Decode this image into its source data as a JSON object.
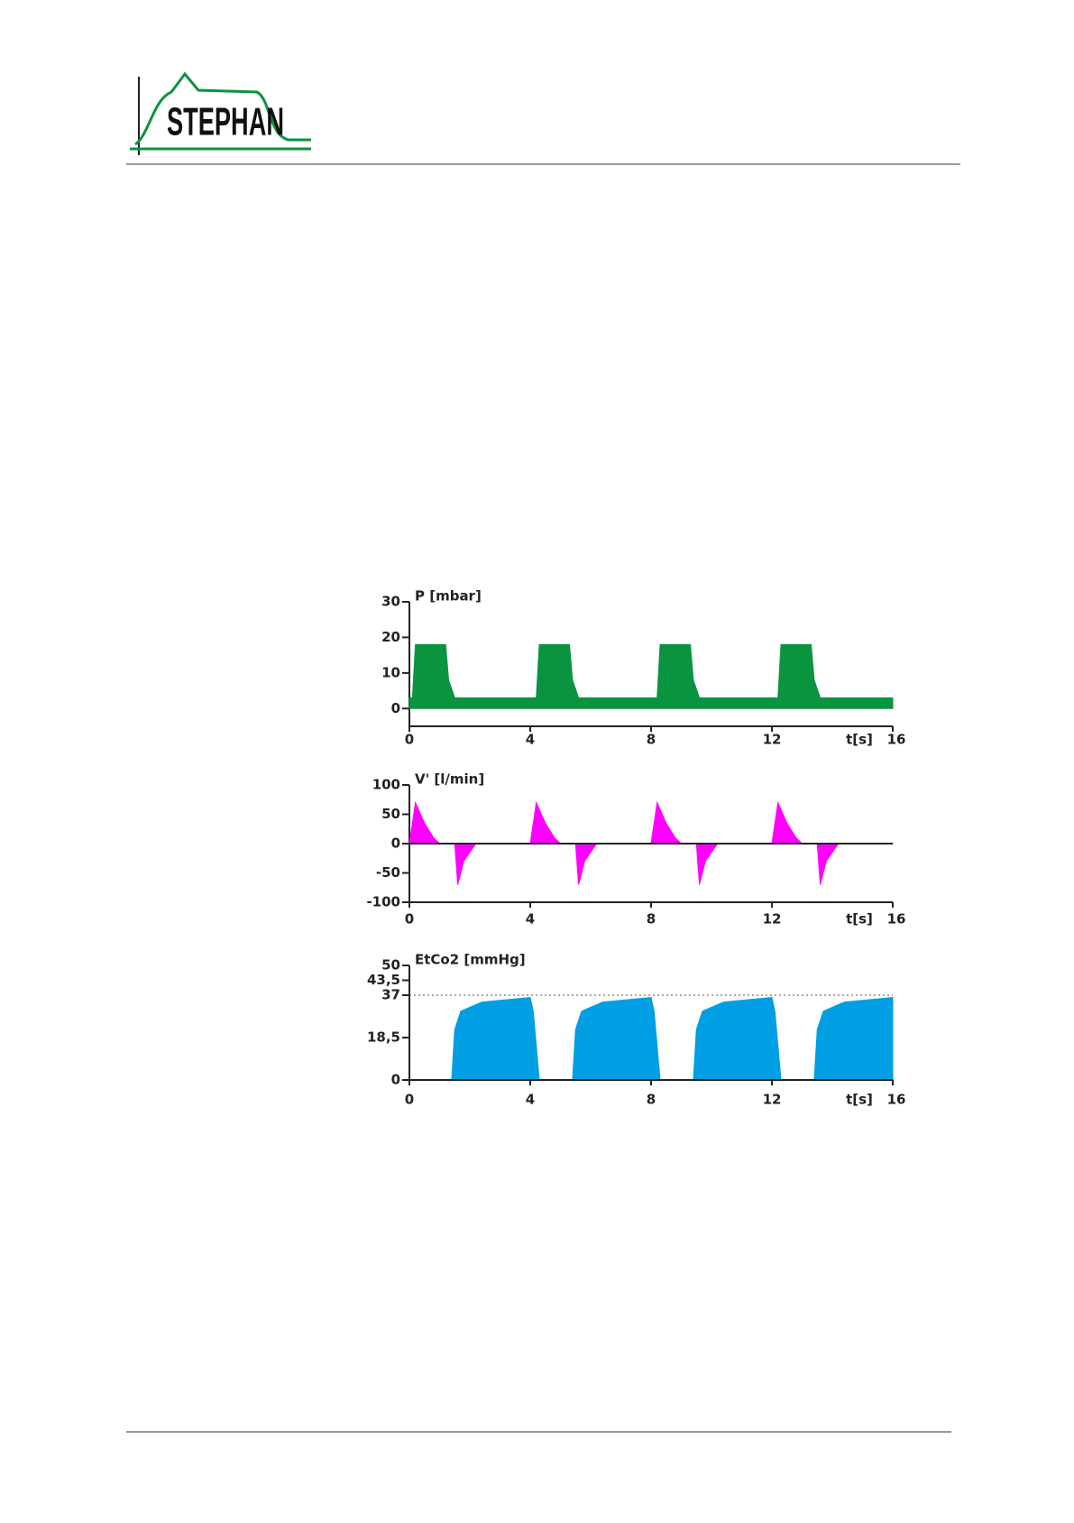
{
  "header": {
    "logo": "STEPHAN"
  },
  "chart_data": [
    {
      "type": "area",
      "title": "P  [mbar]",
      "xlabel": "t[s]",
      "color": "#0a9440",
      "x": [
        0,
        0.1,
        0.2,
        1.2,
        1.3,
        1.5,
        4.2,
        4.3,
        5.3,
        5.4,
        5.6,
        8.2,
        8.3,
        9.3,
        9.4,
        9.6,
        12.2,
        12.3,
        13.3,
        13.4,
        13.6,
        16
      ],
      "values": [
        3,
        3,
        18,
        18,
        8,
        3,
        3,
        18,
        18,
        8,
        3,
        3,
        18,
        18,
        8,
        3,
        3,
        18,
        18,
        8,
        3,
        3
      ],
      "xlim": [
        0,
        16
      ],
      "xticks": [
        0,
        4,
        8,
        12,
        16
      ],
      "ylim": [
        -5,
        30
      ],
      "yticks": [
        0,
        10,
        20,
        30
      ]
    },
    {
      "type": "area",
      "title": "V' [l/min]",
      "xlabel": "t[s]",
      "color": "#ff00ff",
      "x": [
        0,
        0.2,
        0.5,
        0.8,
        1.0,
        1.5,
        1.6,
        1.8,
        2.2,
        4,
        4.2,
        4.5,
        4.8,
        5.0,
        5.5,
        5.6,
        5.8,
        6.2,
        8,
        8.2,
        8.5,
        8.8,
        9.0,
        9.5,
        9.6,
        9.8,
        10.2,
        12,
        12.2,
        12.5,
        12.8,
        13.0,
        13.5,
        13.6,
        13.8,
        14.2,
        16
      ],
      "values": [
        0,
        70,
        35,
        10,
        0,
        0,
        -70,
        -30,
        0,
        0,
        70,
        35,
        10,
        0,
        0,
        -70,
        -30,
        0,
        0,
        70,
        35,
        10,
        0,
        0,
        -70,
        -30,
        0,
        0,
        70,
        35,
        10,
        0,
        0,
        -70,
        -30,
        0,
        0
      ],
      "xlim": [
        0,
        16
      ],
      "xticks": [
        0,
        4,
        8,
        12,
        16
      ],
      "ylim": [
        -100,
        100
      ],
      "yticks": [
        -100,
        -50,
        0,
        50,
        100
      ],
      "zero_line": true
    },
    {
      "type": "area",
      "title": "EtCo2 [mmHg]",
      "xlabel": "t[s]",
      "color": "#009fe3",
      "x": [
        0,
        1.4,
        1.5,
        1.7,
        2.4,
        4.0,
        4.1,
        4.3,
        5.4,
        5.5,
        5.7,
        6.4,
        8.0,
        8.1,
        8.3,
        9.4,
        9.5,
        9.7,
        10.4,
        12.0,
        12.1,
        12.3,
        13.4,
        13.5,
        13.7,
        14.4,
        16
      ],
      "values": [
        0,
        0,
        22,
        30,
        34,
        36,
        30,
        0,
        0,
        22,
        30,
        34,
        36,
        30,
        0,
        0,
        22,
        30,
        34,
        36,
        30,
        0,
        0,
        22,
        30,
        34,
        36
      ],
      "xlim": [
        0,
        16
      ],
      "xticks": [
        0,
        4,
        8,
        12,
        16
      ],
      "ylim": [
        0,
        50
      ],
      "yticks": [
        0,
        {
          "value": 18.5,
          "label": "18,5"
        },
        37,
        {
          "value": 43.5,
          "label": "43,5"
        },
        50
      ],
      "ref_line": 37
    }
  ]
}
